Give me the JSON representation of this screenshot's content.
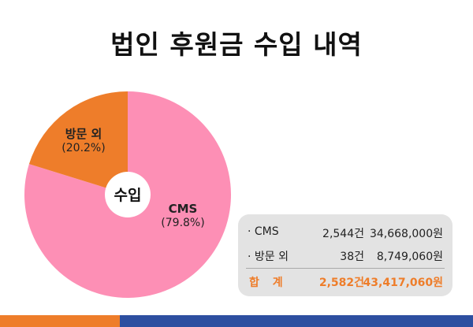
{
  "title": "법인 후원금 수입 내역",
  "chart_data": {
    "type": "pie",
    "center_label": "수입",
    "slices": [
      {
        "name": "CMS",
        "value": 79.8,
        "label": "(79.8%)",
        "color": "#fd8fb5"
      },
      {
        "name": "방문 외",
        "value": 20.2,
        "label": "(20.2%)",
        "color": "#ee7d2a"
      }
    ]
  },
  "summary": {
    "rows": [
      {
        "name": "· CMS",
        "count": "2,544건",
        "amount": "34,668,000원"
      },
      {
        "name": "· 방문 외",
        "count": "38건",
        "amount": "8,749,060원"
      }
    ],
    "total": {
      "name": "합 계",
      "count": "2,582건",
      "amount": "43,417,060원"
    }
  },
  "colors": {
    "accent_orange": "#ee7d2a",
    "accent_blue": "#2d4fa0",
    "pink": "#fd8fb5"
  }
}
